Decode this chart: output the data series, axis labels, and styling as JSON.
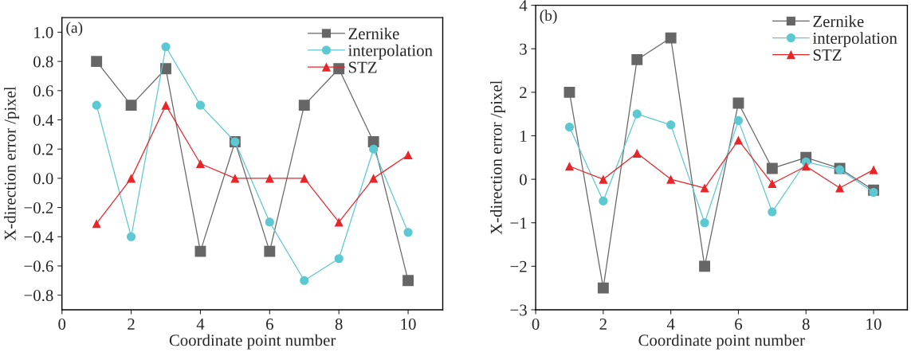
{
  "chart_data": [
    {
      "type": "line",
      "annotations": [
        "(a)"
      ],
      "xlabel": "Coordinate point number",
      "ylabel": "X-direction error /pixel",
      "x": [
        1,
        2,
        3,
        4,
        5,
        6,
        7,
        8,
        9,
        10
      ],
      "series": [
        {
          "name": "Zernike",
          "color": "#666666",
          "marker": "square",
          "values": [
            0.8,
            0.5,
            0.75,
            -0.5,
            0.25,
            -0.5,
            0.5,
            0.75,
            0.25,
            -0.7
          ]
        },
        {
          "name": "interpolation",
          "color": "#5cc8d2",
          "marker": "circle",
          "values": [
            0.5,
            -0.4,
            0.9,
            0.5,
            0.25,
            -0.3,
            -0.7,
            -0.55,
            0.2,
            -0.37
          ]
        },
        {
          "name": "STZ",
          "color": "#e8262a",
          "marker": "triangle",
          "values": [
            -0.31,
            0,
            0.5,
            0.1,
            0,
            0,
            0,
            -0.3,
            0,
            0.16
          ]
        }
      ],
      "xlim": [
        0,
        11
      ],
      "xticks": [
        0,
        2,
        4,
        6,
        8,
        10
      ],
      "ylim": [
        -0.9,
        1.1
      ],
      "yticks": [
        {
          "value": -0.8,
          "label": "−0.8"
        },
        {
          "value": -0.6,
          "label": "−0.6"
        },
        {
          "value": -0.4,
          "label": "−0.4"
        },
        {
          "value": -0.2,
          "label": "−0.2"
        },
        {
          "value": 0,
          "label": "0.0"
        },
        {
          "value": 0.2,
          "label": "0.2"
        },
        {
          "value": 0.4,
          "label": "0.4"
        },
        {
          "value": 0.6,
          "label": "0.6"
        },
        {
          "value": 0.8,
          "label": "0.8"
        },
        {
          "value": 1.0,
          "label": "1.0"
        }
      ],
      "grid": false,
      "legend": "top right",
      "line_style": "solid"
    },
    {
      "type": "line",
      "annotations": [
        "(b)"
      ],
      "xlabel": "Coordinate point number",
      "ylabel": "X-direction error /pixel",
      "x": [
        1,
        2,
        3,
        4,
        5,
        6,
        7,
        8,
        9,
        10
      ],
      "series": [
        {
          "name": "Zernike",
          "color": "#666666",
          "marker": "square",
          "values": [
            2,
            -2.5,
            2.75,
            3.25,
            -2,
            1.75,
            0.25,
            0.5,
            0.25,
            -0.25
          ]
        },
        {
          "name": "interpolation",
          "color": "#5cc8d2",
          "marker": "circle",
          "values": [
            1.2,
            -0.5,
            1.5,
            1.25,
            -1,
            1.35,
            -0.75,
            0.4,
            0.22,
            -0.3
          ]
        },
        {
          "name": "STZ",
          "color": "#e8262a",
          "marker": "triangle",
          "values": [
            0.3,
            0,
            0.6,
            0,
            -0.2,
            0.9,
            -0.1,
            0.3,
            -0.2,
            0.22
          ]
        }
      ],
      "xlim": [
        0,
        11
      ],
      "xticks": [
        0,
        2,
        4,
        6,
        8,
        10
      ],
      "ylim": [
        -3,
        4
      ],
      "yticks": [
        {
          "value": -3,
          "label": "−3"
        },
        {
          "value": -2,
          "label": "−2"
        },
        {
          "value": -1,
          "label": "−1"
        },
        0,
        1,
        2,
        3,
        4
      ],
      "grid": false,
      "legend": "top right",
      "line_style": "solid"
    }
  ]
}
